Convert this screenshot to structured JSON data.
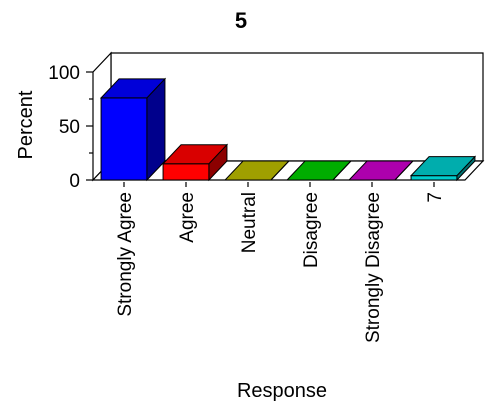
{
  "chart_data": {
    "type": "bar",
    "title": "5",
    "xlabel": "Response",
    "ylabel": "Percent",
    "ylim": [
      0,
      100
    ],
    "yticks": [
      "0",
      "50",
      "100"
    ],
    "categories": [
      "Strongly Agree",
      "Agree",
      "Neutral",
      "Disagree",
      "Strongly Disagree",
      "7"
    ],
    "values": [
      76,
      15,
      0,
      0,
      0,
      4
    ],
    "colors": [
      "#0000ff",
      "#ff0000",
      "#bbbb00",
      "#00cc00",
      "#cc00cc",
      "#00cccc"
    ],
    "grid": false,
    "legend": "none",
    "style": "3d"
  }
}
